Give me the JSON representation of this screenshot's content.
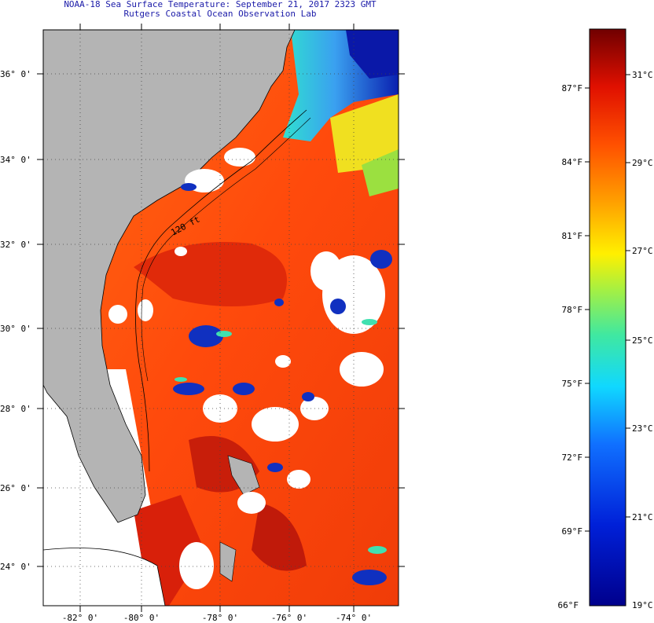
{
  "header": {
    "line1": "NOAA-18 Sea Surface Temperature:  September 21, 2017 2323 GMT",
    "line2": "Rutgers Coastal Ocean Observation Lab"
  },
  "map": {
    "lat_labels": [
      "36° 0'",
      "34° 0'",
      "32° 0'",
      "30° 0'",
      "28° 0'",
      "26° 0'",
      "24° 0'"
    ],
    "lon_labels": [
      "-82° 0'",
      "-80° 0'",
      "-78° 0'",
      "-76° 0'",
      "-74° 0'"
    ],
    "isobath_label": "120 ft",
    "colors": {
      "land": "#b4b4b4",
      "cloud": "#ffffff",
      "warm": "#ff5a10",
      "hot": "#d8200a",
      "cold": "#1030c0"
    }
  },
  "colorbar": {
    "f_labels": [
      "87°F",
      "84°F",
      "81°F",
      "78°F",
      "75°F",
      "72°F",
      "69°F",
      "66°F"
    ],
    "c_labels": [
      "31°C",
      "29°C",
      "27°C",
      "25°C",
      "23°C",
      "21°C",
      "19°C"
    ]
  }
}
